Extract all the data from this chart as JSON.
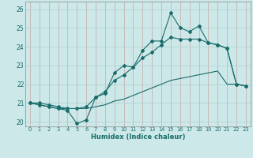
{
  "xlabel": "Humidex (Indice chaleur)",
  "xlim": [
    -0.5,
    23.5
  ],
  "ylim": [
    19.75,
    26.4
  ],
  "yticks": [
    20,
    21,
    22,
    23,
    24,
    25,
    26
  ],
  "xticks": [
    0,
    1,
    2,
    3,
    4,
    5,
    6,
    7,
    8,
    9,
    10,
    11,
    12,
    13,
    14,
    15,
    16,
    17,
    18,
    19,
    20,
    21,
    22,
    23
  ],
  "bg_color": "#cce8e8",
  "grid_color": "#b0d0d0",
  "line_color": "#1a6b6b",
  "main_y": [
    21.0,
    20.9,
    20.8,
    20.7,
    20.6,
    19.9,
    20.1,
    21.3,
    21.5,
    22.6,
    23.0,
    22.9,
    23.8,
    24.3,
    24.3,
    25.8,
    25.0,
    24.8,
    25.1,
    24.2,
    24.1,
    23.9,
    22.0,
    21.9
  ],
  "upper_y": [
    21.0,
    21.0,
    20.9,
    20.8,
    20.7,
    20.7,
    20.8,
    21.3,
    21.6,
    22.2,
    22.5,
    22.9,
    23.4,
    23.7,
    24.1,
    24.5,
    24.4,
    24.4,
    24.4,
    24.2,
    24.1,
    23.9,
    22.0,
    21.9
  ],
  "lower_y": [
    21.0,
    20.9,
    20.8,
    20.7,
    20.7,
    20.7,
    20.7,
    20.8,
    20.9,
    21.1,
    21.2,
    21.4,
    21.6,
    21.8,
    22.0,
    22.2,
    22.3,
    22.4,
    22.5,
    22.6,
    22.7,
    22.0,
    22.0,
    21.9
  ]
}
